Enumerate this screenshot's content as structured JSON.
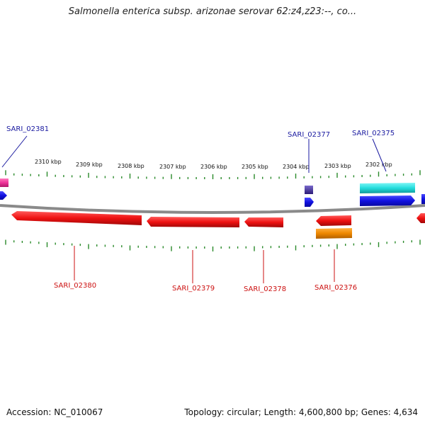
{
  "title": "Salmonella enterica subsp. arizonae serovar 62:z4,z23:--, co...",
  "footer": {
    "accession": "Accession: NC_010067",
    "summary": "Topology: circular; Length: 4,600,800 bp; Genes: 4,634"
  },
  "ruler": {
    "labels": [
      "2310 kbp",
      "2309 kbp",
      "2308 kbp",
      "2307 kbp",
      "2306 kbp",
      "2305 kbp",
      "2304 kbp",
      "2303 kbp",
      "2302 kbp"
    ]
  },
  "genes": {
    "forward": [
      "SARI_02381",
      "SARI_02377",
      "SARI_02375"
    ],
    "reverse": [
      "SARI_02380",
      "SARI_02379",
      "SARI_02378",
      "SARI_02376"
    ]
  },
  "colors": {
    "forward_cds": "#1010e0",
    "reverse_cds": "#ee1111",
    "forward_label": "#1a1aa0",
    "reverse_label": "#cc1010",
    "tick": "#2a8a2a",
    "cyan_feature": "#22dddd",
    "orange_feature": "#ee8800",
    "pink_feature": "#ee3399",
    "purple_feature": "#4a3a99",
    "backbone": "#8a8a8a"
  }
}
